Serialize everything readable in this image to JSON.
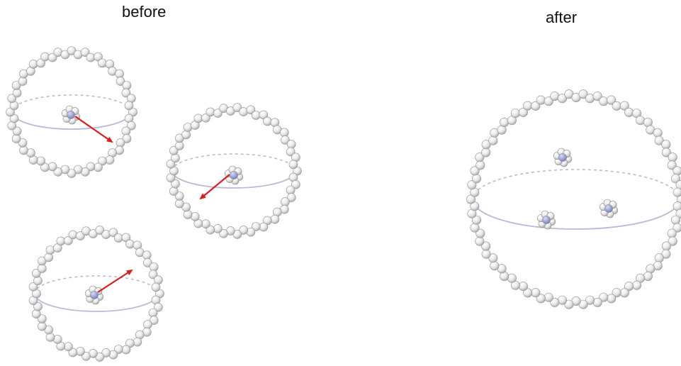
{
  "labels": {
    "before": "before",
    "after": "after"
  },
  "colors": {
    "shell_bead": "#eeeeee",
    "core_bead": "#a4acd8",
    "ring_line": "#b9b9d9",
    "arrow": "#e01b1b"
  }
}
